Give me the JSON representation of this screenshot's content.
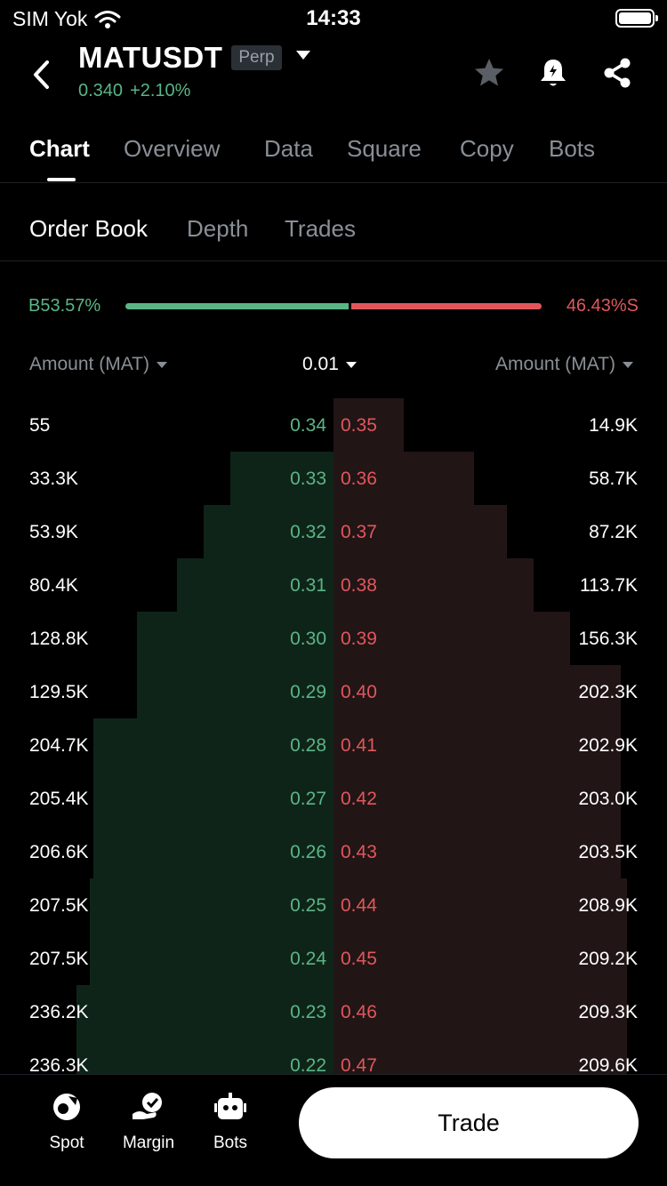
{
  "status": {
    "carrier": "SIM Yok",
    "time": "14:33"
  },
  "header": {
    "symbol": "MATUSDT",
    "badge": "Perp",
    "price": "0.340",
    "change": "+2.10%",
    "icons": [
      "back-icon",
      "star-icon",
      "bell-icon",
      "share-icon"
    ]
  },
  "main_tabs": [
    "Chart",
    "Overview",
    "Data",
    "Square",
    "Copy",
    "Bots"
  ],
  "active_main_tab": "Chart",
  "sub_tabs": [
    "Order Book",
    "Depth",
    "Trades"
  ],
  "active_sub_tab": "Order Book",
  "ratio": {
    "buy_label": "B",
    "buy_pct": "53.57%",
    "sell_pct": "46.43%",
    "sell_label": "S",
    "buy_fraction": 0.5357
  },
  "columns": {
    "left": "Amount (MAT)",
    "precision": "0.01",
    "right": "Amount (MAT)"
  },
  "order_book": [
    {
      "bid_amount": "55",
      "bid_price": "0.34",
      "ask_price": "0.35",
      "ask_amount": "14.9K",
      "bid_depth": 0.0,
      "ask_depth": 0.21
    },
    {
      "bid_amount": "33.3K",
      "bid_price": "0.33",
      "ask_price": "0.36",
      "ask_amount": "58.7K",
      "bid_depth": 0.31,
      "ask_depth": 0.42
    },
    {
      "bid_amount": "53.9K",
      "bid_price": "0.32",
      "ask_price": "0.37",
      "ask_amount": "87.2K",
      "bid_depth": 0.39,
      "ask_depth": 0.52
    },
    {
      "bid_amount": "80.4K",
      "bid_price": "0.31",
      "ask_price": "0.38",
      "ask_amount": "113.7K",
      "bid_depth": 0.47,
      "ask_depth": 0.6
    },
    {
      "bid_amount": "128.8K",
      "bid_price": "0.30",
      "ask_price": "0.39",
      "ask_amount": "156.3K",
      "bid_depth": 0.59,
      "ask_depth": 0.71
    },
    {
      "bid_amount": "129.5K",
      "bid_price": "0.29",
      "ask_price": "0.40",
      "ask_amount": "202.3K",
      "bid_depth": 0.59,
      "ask_depth": 0.86
    },
    {
      "bid_amount": "204.7K",
      "bid_price": "0.28",
      "ask_price": "0.41",
      "ask_amount": "202.9K",
      "bid_depth": 0.72,
      "ask_depth": 0.86
    },
    {
      "bid_amount": "205.4K",
      "bid_price": "0.27",
      "ask_price": "0.42",
      "ask_amount": "203.0K",
      "bid_depth": 0.72,
      "ask_depth": 0.86
    },
    {
      "bid_amount": "206.6K",
      "bid_price": "0.26",
      "ask_price": "0.43",
      "ask_amount": "203.5K",
      "bid_depth": 0.72,
      "ask_depth": 0.86
    },
    {
      "bid_amount": "207.5K",
      "bid_price": "0.25",
      "ask_price": "0.44",
      "ask_amount": "208.9K",
      "bid_depth": 0.73,
      "ask_depth": 0.88
    },
    {
      "bid_amount": "207.5K",
      "bid_price": "0.24",
      "ask_price": "0.45",
      "ask_amount": "209.2K",
      "bid_depth": 0.73,
      "ask_depth": 0.88
    },
    {
      "bid_amount": "236.2K",
      "bid_price": "0.23",
      "ask_price": "0.46",
      "ask_amount": "209.3K",
      "bid_depth": 0.77,
      "ask_depth": 0.88
    },
    {
      "bid_amount": "236.3K",
      "bid_price": "0.22",
      "ask_price": "0.47",
      "ask_amount": "209.6K",
      "bid_depth": 0.77,
      "ask_depth": 0.88
    }
  ],
  "bottom_bar": {
    "items": [
      {
        "label": "Spot",
        "icon": "spot-icon"
      },
      {
        "label": "Margin",
        "icon": "margin-icon"
      },
      {
        "label": "Bots",
        "icon": "bots-icon"
      }
    ],
    "trade_label": "Trade"
  },
  "colors": {
    "buy": "#5ab585",
    "sell": "#e0575b",
    "background": "#000000"
  }
}
